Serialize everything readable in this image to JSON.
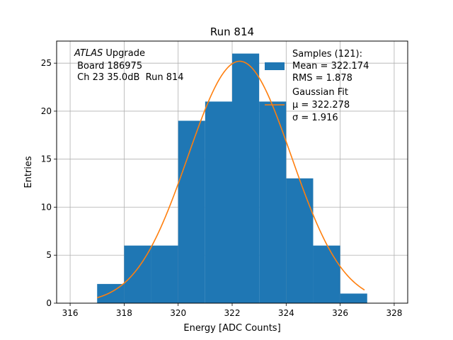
{
  "chart_data": {
    "type": "bar",
    "title": "Run 814",
    "xlabel": "Energy [ADC Counts]",
    "ylabel": "Entries",
    "xlim": [
      315.5,
      328.5
    ],
    "ylim": [
      0,
      27.3
    ],
    "grid": true,
    "xticks": [
      316,
      318,
      320,
      322,
      324,
      326,
      328
    ],
    "yticks": [
      0,
      5,
      10,
      15,
      20,
      25
    ],
    "bins": [
      {
        "x0": 317,
        "x1": 318,
        "count": 2
      },
      {
        "x0": 318,
        "x1": 319,
        "count": 6
      },
      {
        "x0": 319,
        "x1": 320,
        "count": 6
      },
      {
        "x0": 320,
        "x1": 321,
        "count": 19
      },
      {
        "x0": 321,
        "x1": 322,
        "count": 21
      },
      {
        "x0": 322,
        "x1": 323,
        "count": 26
      },
      {
        "x0": 323,
        "x1": 324,
        "count": 21
      },
      {
        "x0": 324,
        "x1": 325,
        "count": 13
      },
      {
        "x0": 325,
        "x1": 326,
        "count": 6
      },
      {
        "x0": 326,
        "x1": 327,
        "count": 1
      }
    ],
    "fit": {
      "type": "gaussian",
      "mu": 322.278,
      "sigma": 1.916,
      "amplitude": 25.2,
      "x_range": [
        317,
        326.9
      ]
    },
    "annotation": {
      "italic": "ATLAS",
      "line1_rest": " Upgrade",
      "line2": " Board 186975",
      "line3": " Ch 23 35.0dB  Run 814"
    },
    "legend": {
      "placement": "top-right",
      "samples": [
        "Samples (121):",
        "Mean = 322.174",
        "RMS = 1.878"
      ],
      "fit": [
        "Gaussian Fit",
        "μ = 322.278",
        "σ = 1.916"
      ]
    },
    "colors": {
      "bars": "#1f77b4",
      "fit": "#ff7f0e",
      "grid": "#b0b0b0"
    }
  }
}
